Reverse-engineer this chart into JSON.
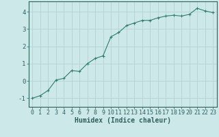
{
  "x": [
    0,
    1,
    2,
    3,
    4,
    5,
    6,
    7,
    8,
    9,
    10,
    11,
    12,
    13,
    14,
    15,
    16,
    17,
    18,
    19,
    20,
    21,
    22,
    23
  ],
  "y": [
    -1.0,
    -0.85,
    -0.55,
    0.05,
    0.15,
    0.6,
    0.55,
    1.0,
    1.3,
    1.45,
    2.55,
    2.8,
    3.2,
    3.35,
    3.5,
    3.5,
    3.65,
    3.75,
    3.8,
    3.75,
    3.85,
    4.2,
    4.05,
    3.95
  ],
  "line_color": "#2e7d6e",
  "marker": "+",
  "bg_color": "#cce8e8",
  "grid_color": "#b8d4d4",
  "axis_color": "#2e6060",
  "xlabel": "Humidex (Indice chaleur)",
  "ylim": [
    -1.5,
    4.6
  ],
  "xlim": [
    -0.5,
    23.5
  ],
  "yticks": [
    -1,
    0,
    1,
    2,
    3,
    4
  ],
  "xticks": [
    0,
    1,
    2,
    3,
    4,
    5,
    6,
    7,
    8,
    9,
    10,
    11,
    12,
    13,
    14,
    15,
    16,
    17,
    18,
    19,
    20,
    21,
    22,
    23
  ],
  "figsize": [
    3.2,
    2.0
  ],
  "dpi": 100,
  "tick_fontsize": 6,
  "xlabel_fontsize": 7
}
